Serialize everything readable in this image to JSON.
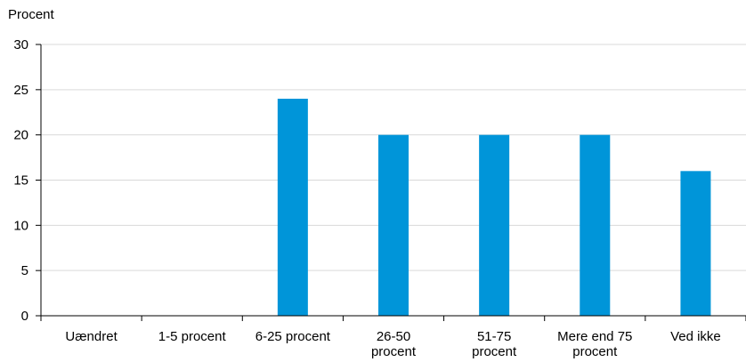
{
  "chart_data": {
    "type": "bar",
    "ylabel": "Procent",
    "xlabel": "",
    "categories": [
      "Uændret",
      "1-5 procent",
      "6-25 procent",
      "26-50 procent",
      "51-75 procent",
      "Mere end 75 procent",
      "Ved ikke"
    ],
    "category_lines": [
      [
        "Uændret"
      ],
      [
        "1-5 procent"
      ],
      [
        "6-25 procent"
      ],
      [
        "26-50",
        "procent"
      ],
      [
        "51-75",
        "procent"
      ],
      [
        "Mere end 75",
        "procent"
      ],
      [
        "Ved ikke"
      ]
    ],
    "values": [
      0,
      0,
      24,
      20,
      20,
      20,
      16
    ],
    "ylim": [
      0,
      30
    ],
    "yticks": [
      "0",
      "5",
      "10",
      "15",
      "20",
      "25",
      "30"
    ],
    "grid": true,
    "bar_color": "#0095d9",
    "grid_color": "#d9d9d9"
  }
}
